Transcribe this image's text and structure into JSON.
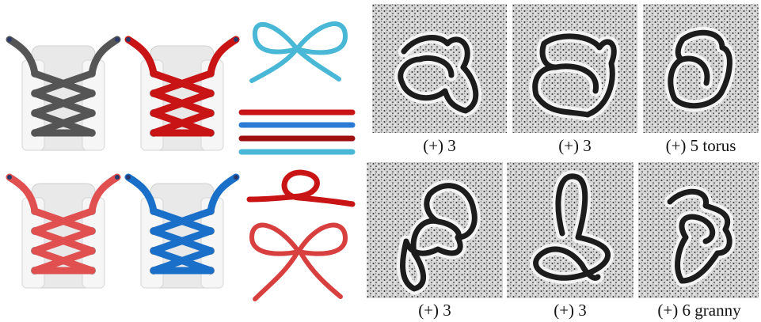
{
  "panels": [
    {
      "caption": "(+) 3"
    },
    {
      "caption": "(+) 3"
    },
    {
      "caption": "(+) 5 torus"
    },
    {
      "caption": "(+) 3"
    },
    {
      "caption": "(+) 3"
    },
    {
      "caption": "(+) 6 granny"
    }
  ]
}
